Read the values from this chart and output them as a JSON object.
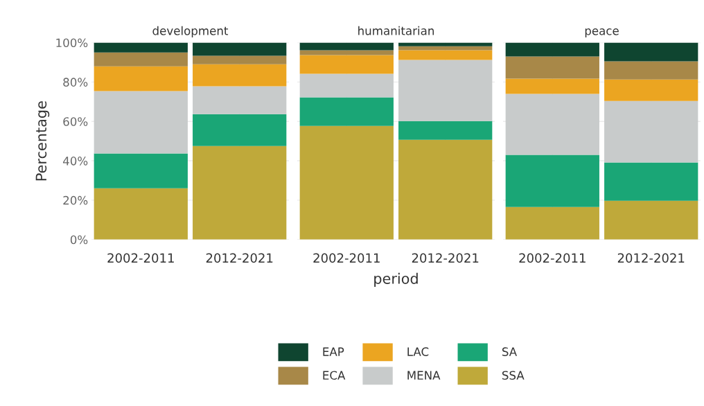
{
  "chart_data": [
    {
      "type": "bar",
      "stacked": true,
      "title": "development",
      "ylabel": "Percentage",
      "legend": "bottom",
      "categories": [
        "2002-2011",
        "2012-2021"
      ],
      "ylim": [
        0,
        100
      ],
      "yticks": [
        {
          "value": 0,
          "label": "0%"
        },
        {
          "value": 20,
          "label": "20%"
        },
        {
          "value": 40,
          "label": "40%"
        },
        {
          "value": 60,
          "label": "60%"
        },
        {
          "value": 80,
          "label": "80%"
        },
        {
          "value": 100,
          "label": "100%"
        }
      ],
      "grid": true,
      "series": [
        {
          "name": "SSA",
          "color": "#bfa93a",
          "values": [
            26,
            47.5
          ]
        },
        {
          "name": "SA",
          "color": "#1aa676",
          "values": [
            17.7,
            16.2
          ]
        },
        {
          "name": "MENA",
          "color": "#c8cbcb",
          "values": [
            31.7,
            14.1
          ]
        },
        {
          "name": "LAC",
          "color": "#eba521",
          "values": [
            12.6,
            11.2
          ]
        },
        {
          "name": "ECA",
          "color": "#a88848",
          "values": [
            7,
            4.3
          ]
        },
        {
          "name": "EAP",
          "color": "#0f4530",
          "values": [
            5,
            6.7
          ]
        }
      ]
    },
    {
      "type": "bar",
      "stacked": true,
      "title": "humanitarian",
      "xlabel": "period",
      "categories": [
        "2002-2011",
        "2012-2021"
      ],
      "ylim": [
        0,
        100
      ],
      "yticks": [
        0,
        20,
        40,
        60,
        80,
        100
      ],
      "tick_labels": "x",
      "grid": true,
      "series": [
        {
          "name": "SSA",
          "color": "#bfa93a",
          "values": [
            57.7,
            50.7
          ]
        },
        {
          "name": "SA",
          "color": "#1aa676",
          "values": [
            14.5,
            9.5
          ]
        },
        {
          "name": "MENA",
          "color": "#c8cbcb",
          "values": [
            12,
            31
          ]
        },
        {
          "name": "LAC",
          "color": "#eba521",
          "values": [
            9.5,
            4.9
          ]
        },
        {
          "name": "ECA",
          "color": "#a88848",
          "values": [
            2.4,
            2.1
          ]
        },
        {
          "name": "EAP",
          "color": "#0f4530",
          "values": [
            3.9,
            1.8
          ]
        }
      ]
    },
    {
      "type": "bar",
      "stacked": true,
      "title": "peace",
      "categories": [
        "2002-2011",
        "2012-2021"
      ],
      "ylim": [
        0,
        100
      ],
      "yticks": [
        0,
        20,
        40,
        60,
        80,
        100
      ],
      "tick_labels": "x",
      "grid": true,
      "series": [
        {
          "name": "SSA",
          "color": "#bfa93a",
          "values": [
            16.5,
            19.7
          ]
        },
        {
          "name": "SA",
          "color": "#1aa676",
          "values": [
            26.5,
            19.4
          ]
        },
        {
          "name": "MENA",
          "color": "#c8cbcb",
          "values": [
            31,
            31.3
          ]
        },
        {
          "name": "LAC",
          "color": "#eba521",
          "values": [
            7.7,
            10.9
          ]
        },
        {
          "name": "ECA",
          "color": "#a88848",
          "values": [
            11.3,
            9.2
          ]
        },
        {
          "name": "EAP",
          "color": "#0f4530",
          "values": [
            7,
            9.5
          ]
        }
      ]
    }
  ]
}
